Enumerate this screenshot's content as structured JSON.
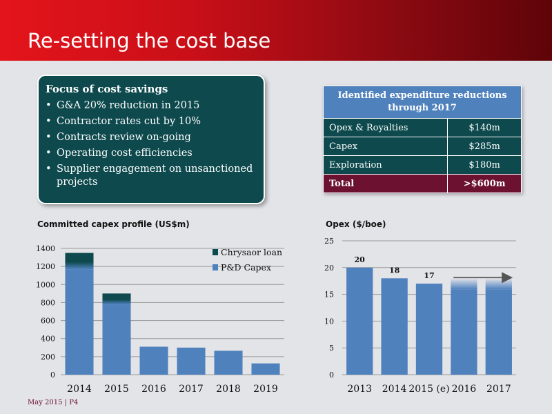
{
  "header": {
    "title": "Re-setting the cost base"
  },
  "focus_box": {
    "heading": "Focus of cost savings",
    "items": [
      "G&A 20% reduction in 2015",
      "Contractor rates cut by 10%",
      "Contracts review on-going",
      "Operating cost efficiencies",
      "Supplier engagement on unsanctioned projects"
    ]
  },
  "expenditure_table": {
    "header_line1": "Identified expenditure reductions",
    "header_line2": "through 2017",
    "rows": [
      {
        "label": "Opex & Royalties",
        "value": "$140m"
      },
      {
        "label": "Capex",
        "value": "$285m"
      },
      {
        "label": "Exploration",
        "value": "$180m"
      }
    ],
    "total": {
      "label": "Total",
      "value": ">$600m"
    }
  },
  "footer": {
    "text": "May 2015 | P4"
  },
  "colors": {
    "bar_blue": "#4f81bd",
    "loan_teal": "#0d494d",
    "total_red": "#6c1130",
    "header_red": "#e4141b"
  },
  "chart_data": [
    {
      "type": "bar",
      "title": "Committed capex profile (US$m)",
      "categories": [
        "2014",
        "2015",
        "2016",
        "2017",
        "2018",
        "2019"
      ],
      "series": [
        {
          "name": "P&D Capex",
          "values": [
            1170,
            780,
            310,
            300,
            265,
            125
          ]
        },
        {
          "name": "Chrysaor loan",
          "values": [
            180,
            120,
            0,
            0,
            0,
            0
          ]
        }
      ],
      "stacked": true,
      "ylim": [
        0,
        1400
      ],
      "yticks": [
        0,
        200,
        400,
        600,
        800,
        1000,
        1200,
        1400
      ],
      "legend_position": "top-right",
      "grid": true
    },
    {
      "type": "bar",
      "title": "Opex ($/boe)",
      "categories": [
        "2013",
        "2014",
        "2015 (e)",
        "2016",
        "2017"
      ],
      "values": [
        20,
        18,
        17,
        18,
        18
      ],
      "data_labels": [
        "20",
        "18",
        "17",
        "",
        ""
      ],
      "ylim": [
        0,
        25
      ],
      "yticks": [
        0,
        5,
        10,
        15,
        20,
        25
      ],
      "grid": true,
      "annotation": "flat arrow over 2016-2017"
    }
  ]
}
